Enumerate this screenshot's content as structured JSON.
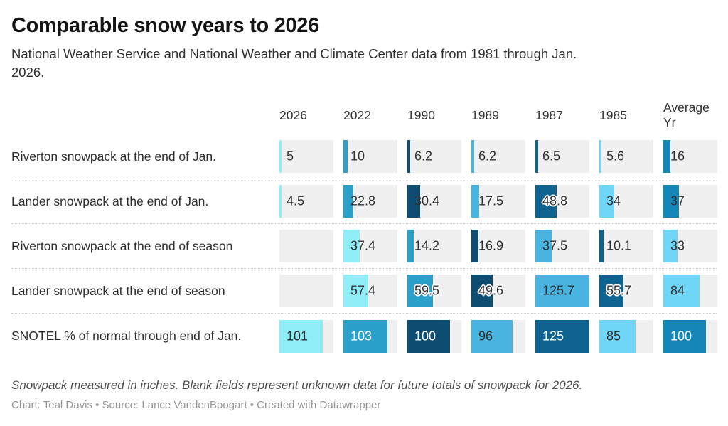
{
  "chart_data": {
    "type": "table",
    "title": "Comparable snow years to 2026",
    "subtitle": "National Weather Service and National Weather and Climate Center data from 1981 through Jan.\n2026.",
    "columns": [
      "2026",
      "2022",
      "1990",
      "1989",
      "1987",
      "1985",
      "Average Yr"
    ],
    "scale_max": 125.7,
    "value_unit": "inches (SNOTEL row in % of normal)",
    "colors": {
      "cell_background": "#f0f0f0",
      "dark_text": "#333333",
      "white_text": "#ffffff"
    },
    "rows": [
      {
        "label": "Riverton snowpack at the end of Jan.",
        "cells": [
          {
            "value": "5",
            "num": 5,
            "color": "#8FEDF5",
            "text": "dark"
          },
          {
            "value": "10",
            "num": 10,
            "color": "#2AA0CB",
            "text": "dark"
          },
          {
            "value": "6.2",
            "num": 6.2,
            "color": "#0D4D72",
            "text": "dark"
          },
          {
            "value": "6.2",
            "num": 6.2,
            "color": "#4AB4E0",
            "text": "dark"
          },
          {
            "value": "6.5",
            "num": 6.5,
            "color": "#0E6390",
            "text": "dark"
          },
          {
            "value": "5.6",
            "num": 5.6,
            "color": "#6FD6F7",
            "text": "dark"
          },
          {
            "value": "16",
            "num": 16,
            "color": "#1487B8",
            "text": "dark"
          }
        ]
      },
      {
        "label": "Lander snowpack at the end of Jan.",
        "cells": [
          {
            "value": "4.5",
            "num": 4.5,
            "color": "#8FEDF5",
            "text": "dark"
          },
          {
            "value": "22.8",
            "num": 22.8,
            "color": "#2AA0CB",
            "text": "dark"
          },
          {
            "value": "30.4",
            "num": 30.4,
            "color": "#0D4D72",
            "text": "dark"
          },
          {
            "value": "17.5",
            "num": 17.5,
            "color": "#4AB4E0",
            "text": "dark"
          },
          {
            "value": "48.8",
            "num": 48.8,
            "color": "#0E6390",
            "text": "dark",
            "halo": true
          },
          {
            "value": "34",
            "num": 34,
            "color": "#6FD6F7",
            "text": "dark"
          },
          {
            "value": "37",
            "num": 37,
            "color": "#1487B8",
            "text": "dark"
          }
        ]
      },
      {
        "label": "Riverton snowpack at the end of season",
        "cells": [
          null,
          {
            "value": "37.4",
            "num": 37.4,
            "color": "#8FEDF5",
            "text": "dark"
          },
          {
            "value": "14.2",
            "num": 14.2,
            "color": "#2AA0CB",
            "text": "dark"
          },
          {
            "value": "16.9",
            "num": 16.9,
            "color": "#0D4D72",
            "text": "dark"
          },
          {
            "value": "37.5",
            "num": 37.5,
            "color": "#4AB4E0",
            "text": "dark"
          },
          {
            "value": "10.1",
            "num": 10.1,
            "color": "#0E6390",
            "text": "dark"
          },
          {
            "value": "33",
            "num": 33,
            "color": "#6FD6F7",
            "text": "dark"
          }
        ]
      },
      {
        "label": "Lander snowpack at the end of season",
        "cells": [
          null,
          {
            "value": "57.4",
            "num": 57.4,
            "color": "#8FEDF5",
            "text": "dark"
          },
          {
            "value": "59.5",
            "num": 59.5,
            "color": "#2AA0CB",
            "text": "dark",
            "halo": true
          },
          {
            "value": "49.6",
            "num": 49.6,
            "color": "#0D4D72",
            "text": "dark",
            "halo": true
          },
          {
            "value": "125.7",
            "num": 125.7,
            "color": "#4AB4E0",
            "text": "dark"
          },
          {
            "value": "55.7",
            "num": 55.7,
            "color": "#0E6390",
            "text": "dark",
            "halo": true
          },
          {
            "value": "84",
            "num": 84,
            "color": "#6FD6F7",
            "text": "dark"
          }
        ]
      },
      {
        "label": "SNOTEL % of normal through end of Jan.",
        "cells": [
          {
            "value": "101",
            "num": 101,
            "color": "#8FEDF5",
            "text": "dark"
          },
          {
            "value": "103",
            "num": 103,
            "color": "#2AA0CB",
            "text": "white"
          },
          {
            "value": "100",
            "num": 100,
            "color": "#0D4D72",
            "text": "white"
          },
          {
            "value": "96",
            "num": 96,
            "color": "#4AB4E0",
            "text": "dark"
          },
          {
            "value": "125",
            "num": 125,
            "color": "#0E6390",
            "text": "white"
          },
          {
            "value": "85",
            "num": 85,
            "color": "#6FD6F7",
            "text": "dark"
          },
          {
            "value": "100",
            "num": 100,
            "color": "#1487B8",
            "text": "white"
          }
        ]
      }
    ]
  },
  "footer": {
    "note": "Snowpack measured in inches. Blank fields represent unknown data for future totals of snowpack for 2026.",
    "credits": "Chart: Teal Davis • Source: Lance VandenBoogart • Created with Datawrapper"
  }
}
